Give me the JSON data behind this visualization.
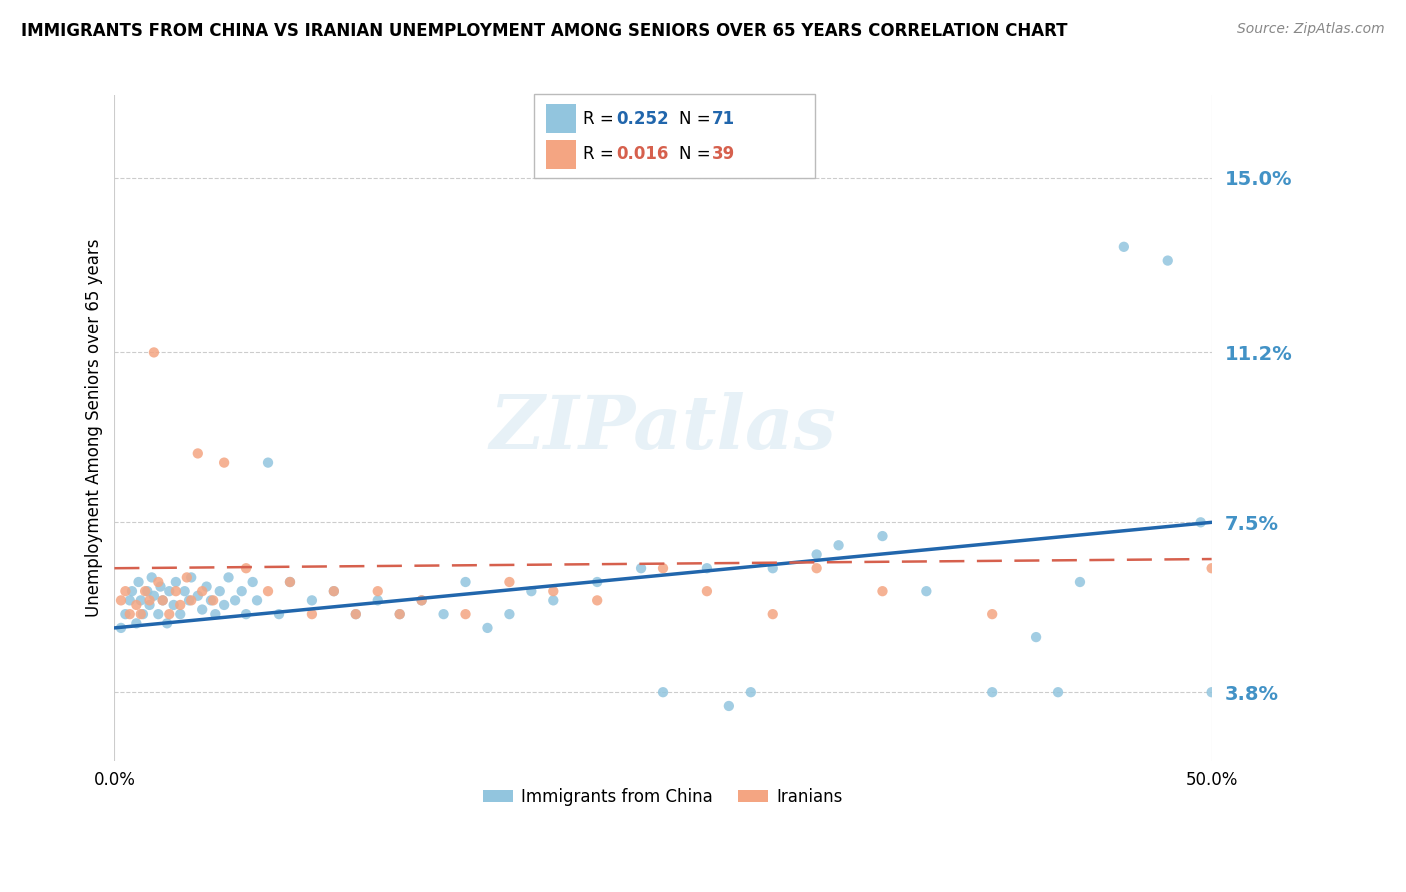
{
  "title": "IMMIGRANTS FROM CHINA VS IRANIAN UNEMPLOYMENT AMONG SENIORS OVER 65 YEARS CORRELATION CHART",
  "source": "Source: ZipAtlas.com",
  "ylabel": "Unemployment Among Seniors over 65 years",
  "ytick_values": [
    3.8,
    7.5,
    11.2,
    15.0
  ],
  "xlim": [
    0.0,
    50.0
  ],
  "ylim": [
    2.3,
    16.8
  ],
  "color_china": "#92c5de",
  "color_iran": "#f4a582",
  "color_china_line": "#2166ac",
  "color_iran_line": "#d6604d",
  "color_ytick": "#4292c6",
  "china_x": [
    0.3,
    0.5,
    0.7,
    0.8,
    1.0,
    1.1,
    1.2,
    1.3,
    1.5,
    1.6,
    1.7,
    1.8,
    2.0,
    2.1,
    2.2,
    2.4,
    2.5,
    2.7,
    2.8,
    3.0,
    3.2,
    3.4,
    3.5,
    3.8,
    4.0,
    4.2,
    4.4,
    4.6,
    4.8,
    5.0,
    5.2,
    5.5,
    5.8,
    6.0,
    6.3,
    6.5,
    7.0,
    7.5,
    8.0,
    9.0,
    10.0,
    11.0,
    12.0,
    13.0,
    14.0,
    15.0,
    16.0,
    17.0,
    18.0,
    19.0,
    20.0,
    22.0,
    24.0,
    25.0,
    27.0,
    28.0,
    29.0,
    30.0,
    32.0,
    33.0,
    35.0,
    37.0,
    40.0,
    42.0,
    43.0,
    44.0,
    46.0,
    48.0,
    49.5,
    50.0
  ],
  "china_y": [
    5.2,
    5.5,
    5.8,
    6.0,
    5.3,
    6.2,
    5.8,
    5.5,
    6.0,
    5.7,
    6.3,
    5.9,
    5.5,
    6.1,
    5.8,
    5.3,
    6.0,
    5.7,
    6.2,
    5.5,
    6.0,
    5.8,
    6.3,
    5.9,
    5.6,
    6.1,
    5.8,
    5.5,
    6.0,
    5.7,
    6.3,
    5.8,
    6.0,
    5.5,
    6.2,
    5.8,
    8.8,
    5.5,
    6.2,
    5.8,
    6.0,
    5.5,
    5.8,
    5.5,
    5.8,
    5.5,
    6.2,
    5.2,
    5.5,
    6.0,
    5.8,
    6.2,
    6.5,
    3.8,
    6.5,
    3.5,
    3.8,
    6.5,
    6.8,
    7.0,
    7.2,
    6.0,
    3.8,
    5.0,
    3.8,
    6.2,
    13.5,
    13.2,
    7.5,
    3.8
  ],
  "iran_x": [
    0.3,
    0.5,
    0.7,
    1.0,
    1.2,
    1.4,
    1.6,
    1.8,
    2.0,
    2.2,
    2.5,
    2.8,
    3.0,
    3.3,
    3.5,
    3.8,
    4.0,
    4.5,
    5.0,
    6.0,
    7.0,
    8.0,
    9.0,
    10.0,
    11.0,
    12.0,
    13.0,
    14.0,
    16.0,
    18.0,
    20.0,
    22.0,
    25.0,
    27.0,
    30.0,
    32.0,
    35.0,
    40.0,
    50.0
  ],
  "iran_y": [
    5.8,
    6.0,
    5.5,
    5.7,
    5.5,
    6.0,
    5.8,
    11.2,
    6.2,
    5.8,
    5.5,
    6.0,
    5.7,
    6.3,
    5.8,
    9.0,
    6.0,
    5.8,
    8.8,
    6.5,
    6.0,
    6.2,
    5.5,
    6.0,
    5.5,
    6.0,
    5.5,
    5.8,
    5.5,
    6.2,
    6.0,
    5.8,
    6.5,
    6.0,
    5.5,
    6.5,
    6.0,
    5.5,
    6.5
  ],
  "china_line_x0": 0.0,
  "china_line_y0": 5.2,
  "china_line_x1": 50.0,
  "china_line_y1": 7.5,
  "iran_line_x0": 0.0,
  "iran_line_y0": 6.5,
  "iran_line_x1": 50.0,
  "iran_line_y1": 6.7
}
